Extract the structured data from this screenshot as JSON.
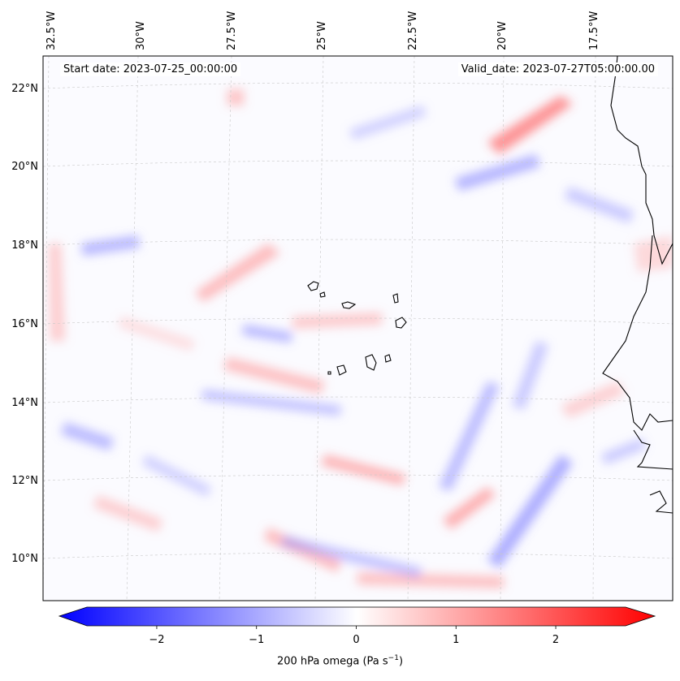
{
  "map": {
    "start_date": "Start date: 2023-07-25_00:00:00",
    "valid_date": "Valid_date: 2023-07-27T05:00:00.00",
    "lon_labels": [
      "32.5°W",
      "30°W",
      "27.5°W",
      "25°W",
      "22.5°W",
      "20°W",
      "17.5°W"
    ],
    "lat_labels": [
      "22°N",
      "20°N",
      "18°N",
      "16°N",
      "14°N",
      "12°N",
      "10°N"
    ],
    "extent": {
      "lon_min": -33.0,
      "lon_max": -15.8,
      "lat_min": 8.9,
      "lat_max": 22.8
    },
    "field": "200 hPa omega",
    "colormap": "bwr",
    "colorbar": {
      "label": "200 hPa omega (Pa s",
      "label_exp": "−1",
      "label_close": ")",
      "range": [
        -2.7,
        2.7
      ],
      "ticks": [
        "−2",
        "−1",
        "0",
        "1",
        "2"
      ],
      "tick_values": [
        -2,
        -1,
        0,
        1,
        2
      ],
      "extend": "both",
      "min_color": "#0000ff",
      "mid_color": "#ffffff",
      "max_color": "#ff0000"
    },
    "gridlines": true,
    "coastlines": true
  }
}
